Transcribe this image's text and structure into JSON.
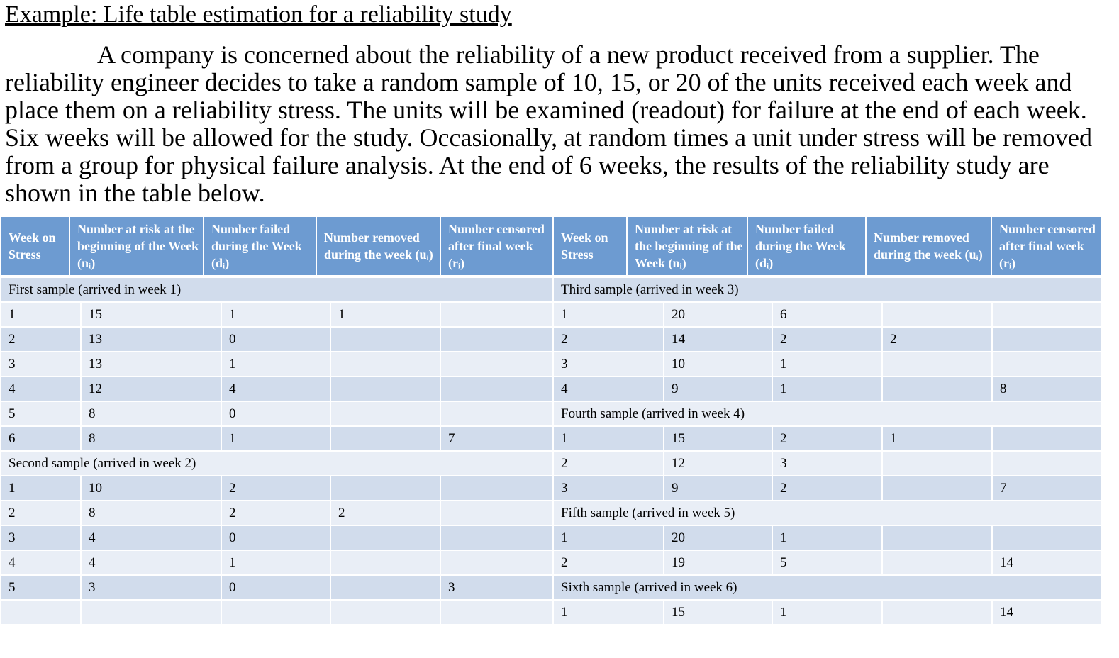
{
  "header": {
    "title": "Example: Life table estimation for a reliability study"
  },
  "intro": {
    "lines": [
      "A company is concerned about the reliability of a new product received from a supplier. The",
      "reliability engineer decides to take a random sample of 10, 15, or 20 of the units received each week and",
      "place them on a reliability stress. The units will be examined (readout) for failure at the end of each week.",
      "Six weeks will be allowed for the study. Occasionally, at random times a unit under stress will be removed",
      "from a group for physical failure analysis. At the end of 6 weeks, the results of the reliability study are",
      "shown in the table below."
    ]
  },
  "table": {
    "columns": [
      "Week on Stress",
      "Number at risk at the beginning of the Week (nᵢ)",
      "Number failed during the Week (dᵢ)",
      "Number removed during the week (uᵢ)",
      "Number censored after final week (rᵢ)",
      "Week on Stress",
      "Number at risk at the beginning of the Week (nᵢ)",
      "Number failed during the Week (dᵢ)",
      "Number removed during the week (uᵢ)",
      "Number censored after final week (rᵢ)"
    ],
    "rows": [
      {
        "left": {
          "section": "First sample (arrived in week 1)"
        },
        "right": {
          "section": "Third sample (arrived in week 3)"
        }
      },
      {
        "left": [
          1,
          15,
          1,
          1,
          null
        ],
        "right": [
          1,
          20,
          6,
          null,
          null
        ]
      },
      {
        "left": [
          2,
          13,
          0,
          null,
          null
        ],
        "right": [
          2,
          14,
          2,
          2,
          null
        ]
      },
      {
        "left": [
          3,
          13,
          1,
          null,
          null
        ],
        "right": [
          3,
          10,
          1,
          null,
          null
        ]
      },
      {
        "left": [
          4,
          12,
          4,
          null,
          null
        ],
        "right": [
          4,
          9,
          1,
          null,
          8
        ]
      },
      {
        "left": [
          5,
          8,
          0,
          null,
          null
        ],
        "right": {
          "section": "Fourth sample (arrived in week 4)"
        }
      },
      {
        "left": [
          6,
          8,
          1,
          null,
          7
        ],
        "right": [
          1,
          15,
          2,
          1,
          null
        ]
      },
      {
        "left": {
          "section": "Second sample (arrived in week 2)"
        },
        "right": [
          2,
          12,
          3,
          null,
          null
        ]
      },
      {
        "left": [
          1,
          10,
          2,
          null,
          null
        ],
        "right": [
          3,
          9,
          2,
          null,
          7
        ]
      },
      {
        "left": [
          2,
          8,
          2,
          2,
          null
        ],
        "right": {
          "section": "Fifth sample (arrived in week 5)"
        }
      },
      {
        "left": [
          3,
          4,
          0,
          null,
          null
        ],
        "right": [
          1,
          20,
          1,
          null,
          null
        ]
      },
      {
        "left": [
          4,
          4,
          1,
          null,
          null
        ],
        "right": [
          2,
          19,
          5,
          null,
          14
        ]
      },
      {
        "left": [
          5,
          3,
          0,
          null,
          3
        ],
        "right": {
          "section": "Sixth sample (arrived in week 6)"
        }
      },
      {
        "left": [
          null,
          null,
          null,
          null,
          null
        ],
        "right": [
          1,
          15,
          1,
          null,
          14
        ]
      }
    ]
  }
}
